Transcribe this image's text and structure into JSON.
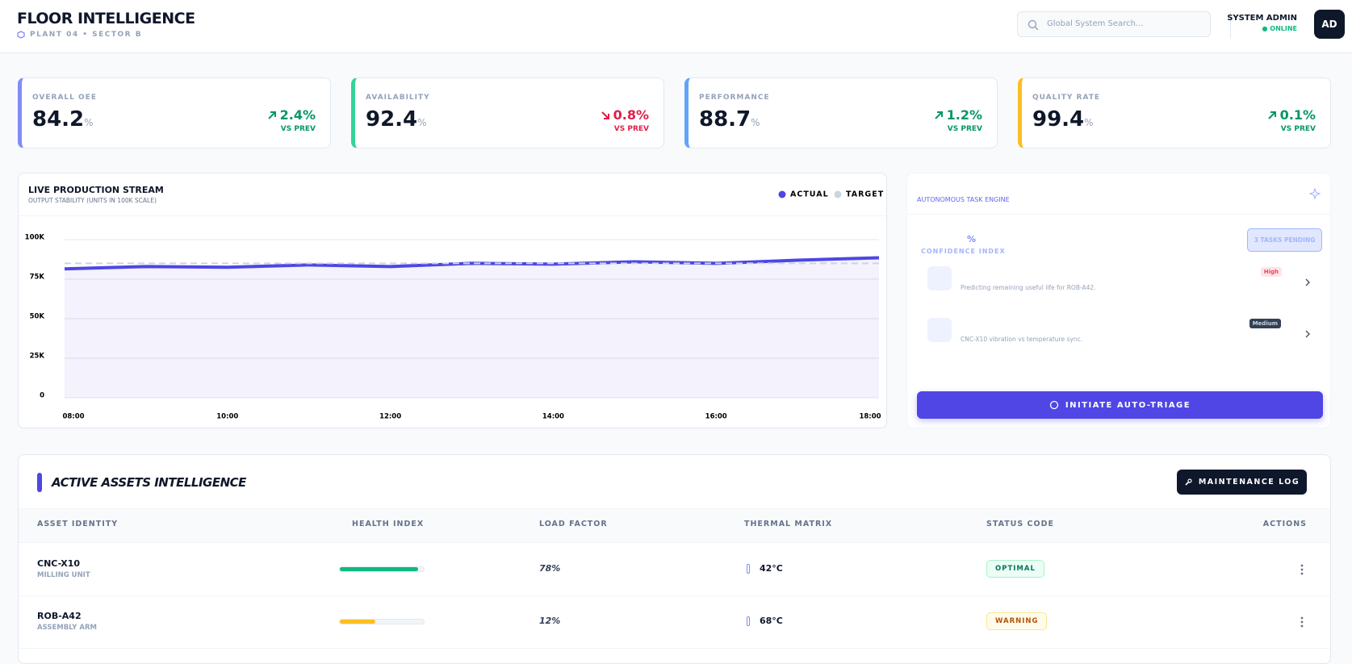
{
  "header": {
    "title": "FLOOR INTELLIGENCE",
    "subtitle": "PLANT 04 • SECTOR B",
    "search_placeholder": "Global System Search...",
    "user_name": "SYSTEM ADMIN",
    "user_status": "ONLINE",
    "avatar": "AD"
  },
  "kpis": [
    {
      "label": "OVERALL OEE",
      "value": "84.2",
      "unit": "%",
      "change": "2.4%",
      "note": "VS PREV",
      "trend": "up",
      "accent": "#818cf8"
    },
    {
      "label": "AVAILABILITY",
      "value": "92.4",
      "unit": "%",
      "change": "0.8%",
      "note": "VS PREV",
      "trend": "down",
      "accent": "#34d399"
    },
    {
      "label": "PERFORMANCE",
      "value": "88.7",
      "unit": "%",
      "change": "1.2%",
      "note": "VS PREV",
      "trend": "up",
      "accent": "#60a5fa"
    },
    {
      "label": "QUALITY RATE",
      "value": "99.4",
      "unit": "%",
      "change": "0.1%",
      "note": "VS PREV",
      "trend": "up",
      "accent": "#fbbf24"
    }
  ],
  "chart_data": {
    "type": "line",
    "title": "LIVE PRODUCTION STREAM",
    "subtitle": "OUTPUT STABILITY (UNITS IN 100K SCALE)",
    "categories": [
      "08:00",
      null,
      "10:00",
      null,
      "12:00",
      null,
      "14:00",
      null,
      "16:00",
      null,
      "18:00"
    ],
    "series": [
      {
        "name": "ACTUAL",
        "color": "#4f46e5",
        "values": [
          81.5,
          83,
          82.5,
          84,
          83,
          85,
          84.5,
          86,
          85,
          87,
          88.5
        ]
      },
      {
        "name": "TARGET",
        "color": "#cbd5e1",
        "dashed": true,
        "values": [
          85,
          85,
          85,
          85,
          85,
          85,
          85,
          85,
          85,
          85,
          85
        ]
      }
    ],
    "ylim": [
      0,
      100
    ],
    "yticks": [
      {
        "value": 0,
        "label": "0"
      },
      {
        "value": 25,
        "label": "25K"
      },
      {
        "value": 50,
        "label": "50K"
      },
      {
        "value": 75,
        "label": "75K"
      },
      {
        "value": 100,
        "label": "100K"
      }
    ],
    "grid": true
  },
  "tasks": {
    "title": "AUTONOMOUS TASK ENGINE",
    "confidence_value": "%",
    "confidence_label": "CONFIDENCE INDEX",
    "pending": "3 TASKS PENDING",
    "items": [
      {
        "text": "Predicting remaining useful life for ROB-A42.",
        "priority": "High"
      },
      {
        "text": "CNC-X10 vibration vs temperature sync.",
        "priority": "Medium"
      }
    ],
    "button": "INITIATE AUTO-TRIAGE"
  },
  "assets": {
    "title": "ACTIVE ASSETS INTELLIGENCE",
    "button": "MAINTENANCE LOG",
    "columns": [
      "ASSET IDENTITY",
      "HEALTH INDEX",
      "LOAD FACTOR",
      "THERMAL MATRIX",
      "STATUS CODE",
      "ACTIONS"
    ],
    "rows": [
      {
        "id": "CNC-X10",
        "type": "MILLING UNIT",
        "health": 93,
        "health_color": "#10b981",
        "load": "78%",
        "temp": "42°C",
        "status": "OPTIMAL",
        "status_kind": "ok"
      },
      {
        "id": "ROB-A42",
        "type": "ASSEMBLY ARM",
        "health": 42,
        "health_color": "#fbbf24",
        "load": "12%",
        "temp": "68°C",
        "status": "WARNING",
        "status_kind": "warn"
      }
    ]
  }
}
